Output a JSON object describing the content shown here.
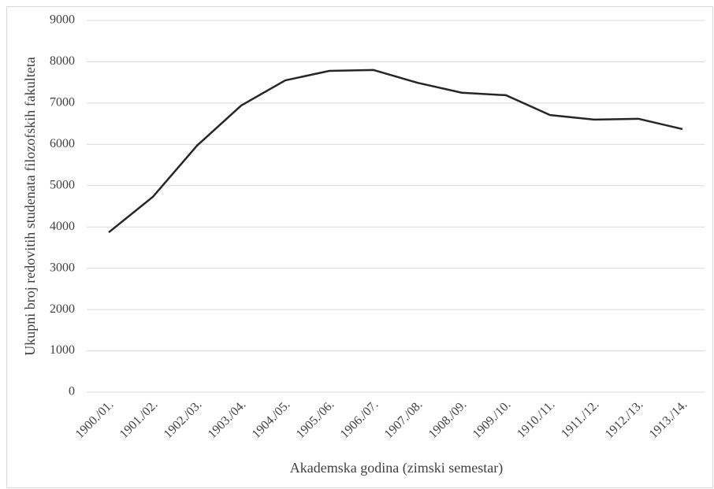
{
  "chart_data": {
    "type": "line",
    "xlabel": "Akademska godina (zimski semestar)",
    "ylabel": "Ukupni broj redovitih studenata filozofskih fakulteta",
    "categories": [
      "1900./01.",
      "1901./02.",
      "1902./03.",
      "1903./04.",
      "1904./05.",
      "1905./06.",
      "1906./07.",
      "1907./08.",
      "1908./09.",
      "1909./10.",
      "1910./11.",
      "1911./12.",
      "1912./13.",
      "1913./14."
    ],
    "series": [
      {
        "name": "Ukupni broj redovitih studenata",
        "color": "#262626",
        "values": [
          3870,
          4730,
          5970,
          6940,
          7550,
          7780,
          7800,
          7490,
          7250,
          7190,
          6710,
          6600,
          6620,
          6370
        ]
      }
    ],
    "ylim": [
      0,
      9000
    ],
    "yticks": [
      0,
      1000,
      2000,
      3000,
      4000,
      5000,
      6000,
      7000,
      8000,
      9000
    ],
    "grid": true
  }
}
